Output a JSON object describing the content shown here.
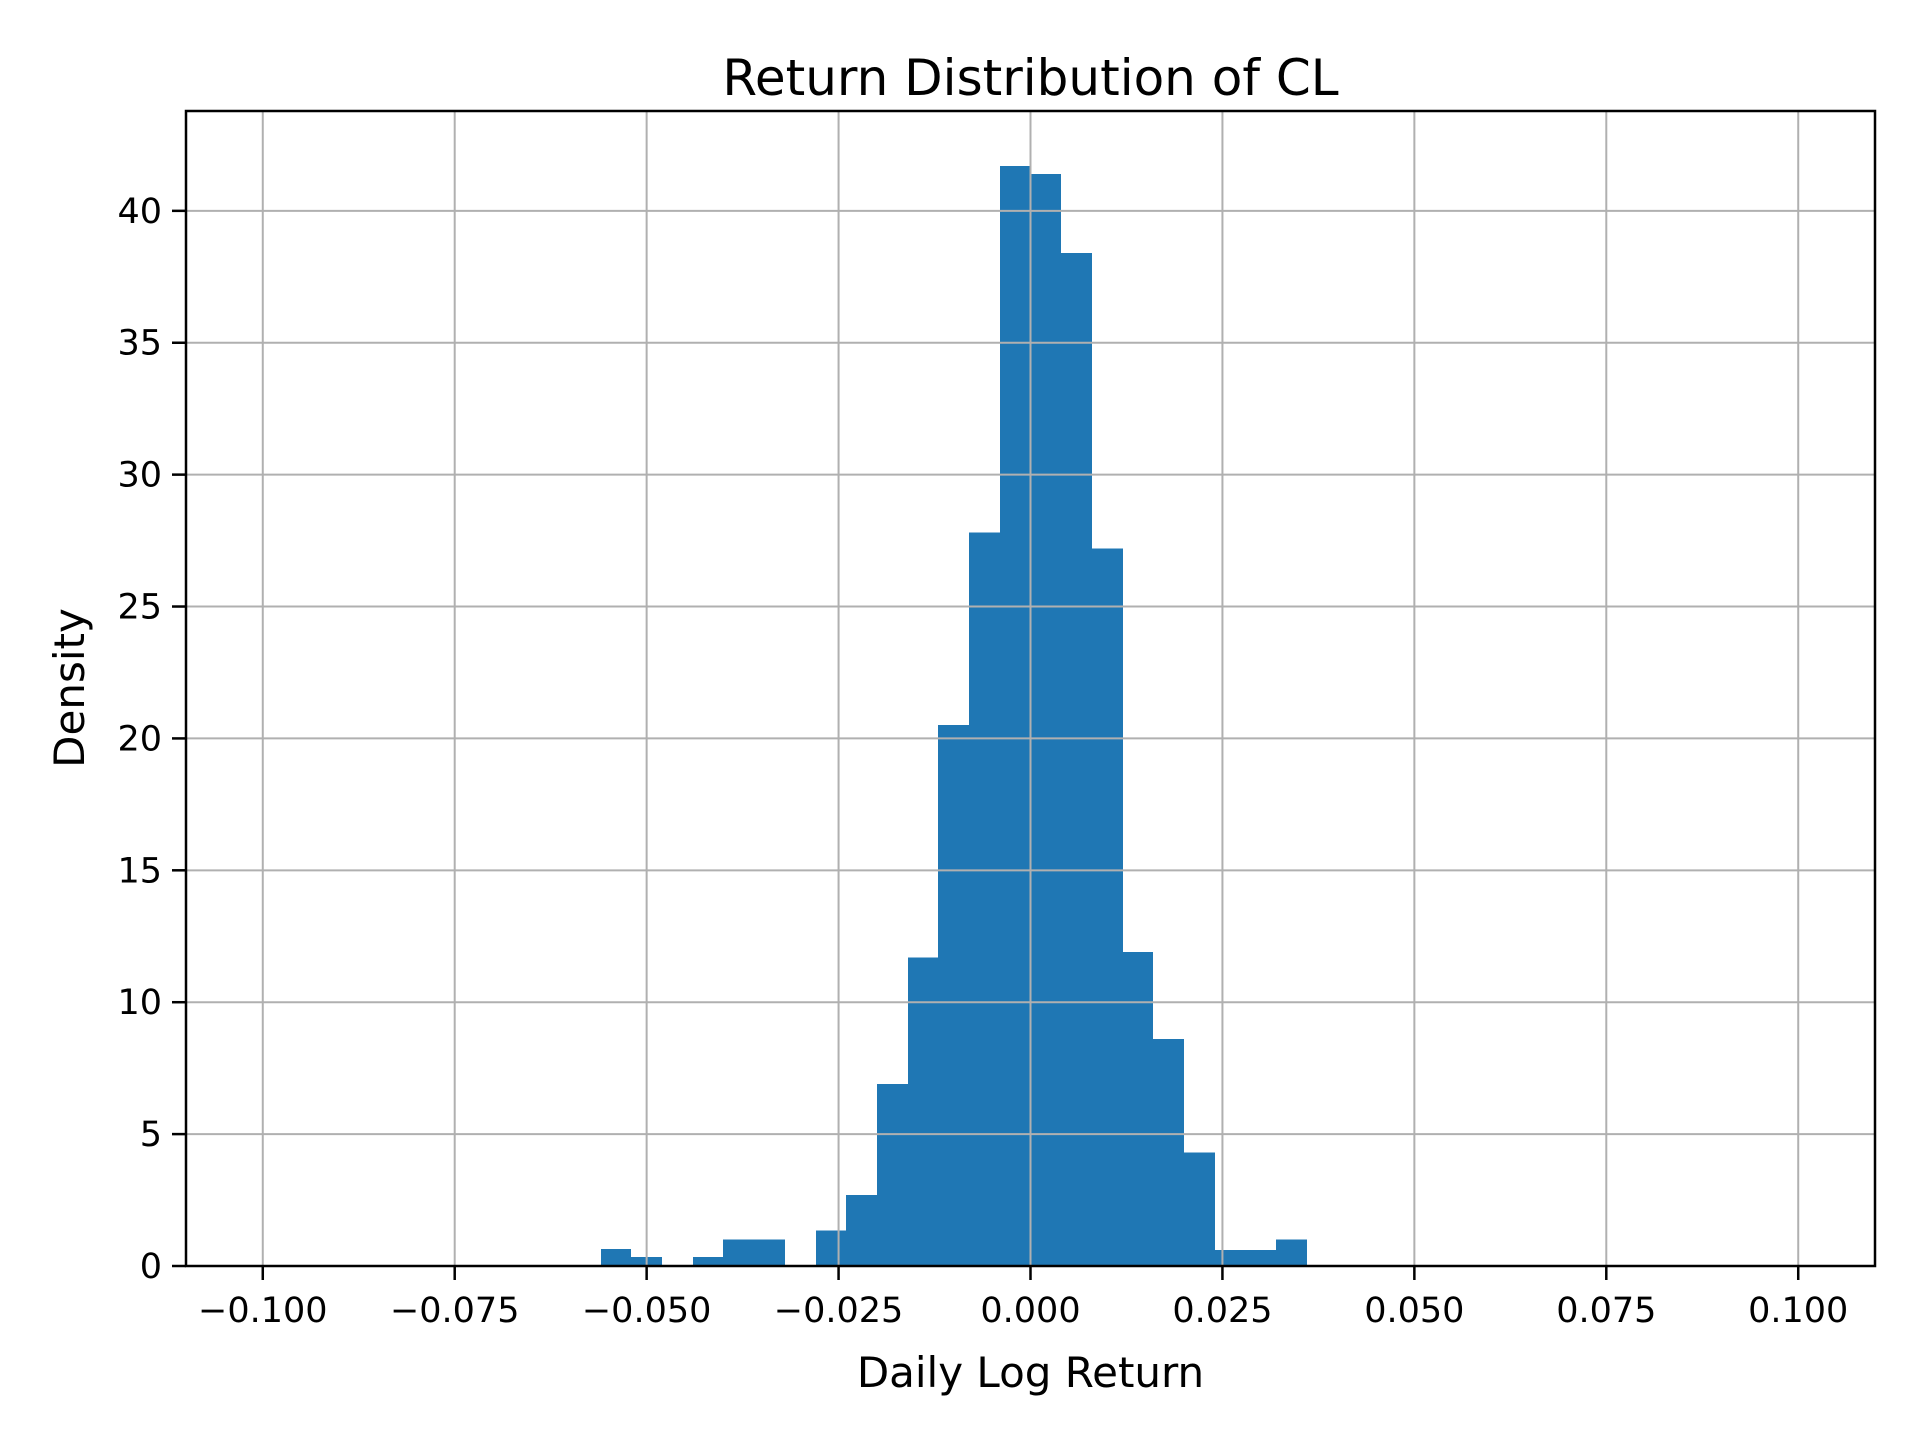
{
  "figure": {
    "background": "#ffffff"
  },
  "chart_data": {
    "type": "bar",
    "subtype": "histogram-density",
    "title": "Return Distribution of CL",
    "xlabel": "Daily Log Return",
    "ylabel": "Density",
    "bar_color": "#1f77b4",
    "grid_color": "#b0b0b0",
    "axis_color": "#000000",
    "grid": true,
    "legend_position": "none",
    "xlim": [
      -0.11,
      0.11
    ],
    "ylim": [
      0,
      43.785
    ],
    "bin_width": 0.004,
    "bin_edges": [
      -0.056,
      -0.052,
      -0.048,
      -0.044,
      -0.04,
      -0.036,
      -0.032,
      -0.028,
      -0.024,
      -0.02,
      -0.016,
      -0.012,
      -0.008,
      -0.004,
      0.0,
      0.004,
      0.008,
      0.012,
      0.016,
      0.02,
      0.024,
      0.028,
      0.032,
      0.036
    ],
    "densities": [
      0.65,
      0.35,
      0,
      0.35,
      1.0,
      1.0,
      0,
      1.35,
      2.7,
      6.9,
      11.7,
      20.5,
      27.8,
      41.7,
      41.4,
      38.4,
      27.2,
      11.9,
      8.6,
      4.3,
      0.6,
      0.6,
      1.0
    ],
    "xticks": {
      "values": [
        -0.1,
        -0.075,
        -0.05,
        -0.025,
        0.0,
        0.025,
        0.05,
        0.075,
        0.1
      ],
      "labels": [
        "−0.100",
        "−0.075",
        "−0.050",
        "−0.025",
        "0.000",
        "0.025",
        "0.050",
        "0.075",
        "0.100"
      ]
    },
    "yticks": {
      "values": [
        0,
        5,
        10,
        15,
        20,
        25,
        30,
        35,
        40
      ],
      "labels": [
        "0",
        "5",
        "10",
        "15",
        "20",
        "25",
        "30",
        "35",
        "40"
      ]
    }
  }
}
